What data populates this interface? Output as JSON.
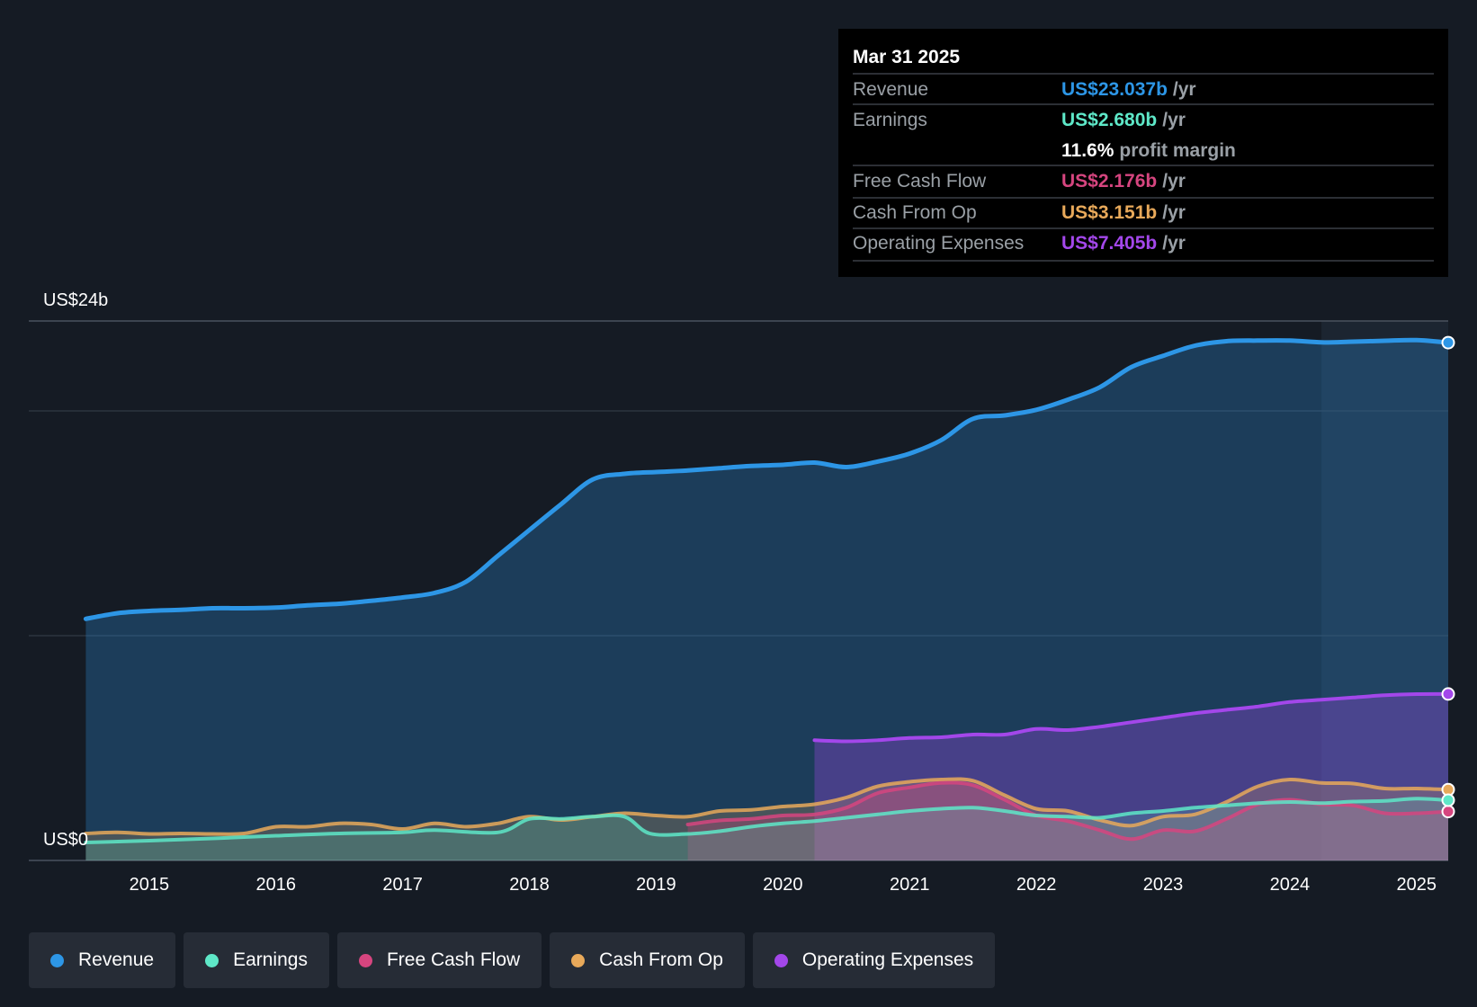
{
  "chart_data": {
    "type": "line",
    "y_axis_top_label": "US$24b",
    "y_axis_bottom_label": "US$0",
    "ylim": [
      0,
      24
    ],
    "x_ticks": [
      "2015",
      "2016",
      "2017",
      "2018",
      "2019",
      "2020",
      "2021",
      "2022",
      "2023",
      "2024",
      "2025"
    ],
    "x_tick_values": [
      2015,
      2016,
      2017,
      2018,
      2019,
      2020,
      2021,
      2022,
      2023,
      2024,
      2025
    ],
    "xlim": [
      2014.05,
      2025.25
    ],
    "highlight_start": 2024.25,
    "series": [
      {
        "name": "Revenue",
        "color": "#2d96e6",
        "fill": true,
        "points": [
          [
            2014.5,
            10.75
          ],
          [
            2014.75,
            11.0
          ],
          [
            2015.0,
            11.1
          ],
          [
            2015.25,
            11.15
          ],
          [
            2015.5,
            11.22
          ],
          [
            2015.75,
            11.22
          ],
          [
            2016.0,
            11.25
          ],
          [
            2016.25,
            11.35
          ],
          [
            2016.5,
            11.42
          ],
          [
            2016.75,
            11.55
          ],
          [
            2017.0,
            11.7
          ],
          [
            2017.25,
            11.9
          ],
          [
            2017.5,
            12.4
          ],
          [
            2017.75,
            13.55
          ],
          [
            2018.0,
            14.7
          ],
          [
            2018.25,
            15.85
          ],
          [
            2018.5,
            16.95
          ],
          [
            2018.75,
            17.2
          ],
          [
            2019.0,
            17.28
          ],
          [
            2019.25,
            17.35
          ],
          [
            2019.5,
            17.45
          ],
          [
            2019.75,
            17.55
          ],
          [
            2020.0,
            17.6
          ],
          [
            2020.25,
            17.7
          ],
          [
            2020.5,
            17.5
          ],
          [
            2020.75,
            17.75
          ],
          [
            2021.0,
            18.1
          ],
          [
            2021.25,
            18.7
          ],
          [
            2021.5,
            19.65
          ],
          [
            2021.75,
            19.8
          ],
          [
            2022.0,
            20.05
          ],
          [
            2022.25,
            20.5
          ],
          [
            2022.5,
            21.05
          ],
          [
            2022.75,
            21.95
          ],
          [
            2023.0,
            22.45
          ],
          [
            2023.25,
            22.9
          ],
          [
            2023.5,
            23.1
          ],
          [
            2023.75,
            23.13
          ],
          [
            2024.0,
            23.13
          ],
          [
            2024.25,
            23.05
          ],
          [
            2024.5,
            23.08
          ],
          [
            2024.75,
            23.12
          ],
          [
            2025.0,
            23.15
          ],
          [
            2025.25,
            23.037
          ]
        ]
      },
      {
        "name": "Earnings",
        "color": "#5ee8c8",
        "fill": true,
        "points": [
          [
            2014.5,
            0.8
          ],
          [
            2015.0,
            0.88
          ],
          [
            2015.5,
            0.98
          ],
          [
            2016.0,
            1.1
          ],
          [
            2016.5,
            1.2
          ],
          [
            2017.0,
            1.25
          ],
          [
            2017.25,
            1.35
          ],
          [
            2017.75,
            1.25
          ],
          [
            2018.0,
            1.85
          ],
          [
            2018.25,
            1.85
          ],
          [
            2018.5,
            1.95
          ],
          [
            2018.75,
            1.95
          ],
          [
            2018.95,
            1.2
          ],
          [
            2019.25,
            1.18
          ],
          [
            2019.5,
            1.3
          ],
          [
            2019.75,
            1.5
          ],
          [
            2020.0,
            1.65
          ],
          [
            2020.25,
            1.75
          ],
          [
            2020.5,
            1.9
          ],
          [
            2020.75,
            2.05
          ],
          [
            2021.0,
            2.2
          ],
          [
            2021.25,
            2.3
          ],
          [
            2021.5,
            2.35
          ],
          [
            2021.75,
            2.2
          ],
          [
            2022.0,
            2.0
          ],
          [
            2022.25,
            1.95
          ],
          [
            2022.5,
            1.9
          ],
          [
            2022.75,
            2.1
          ],
          [
            2023.0,
            2.2
          ],
          [
            2023.25,
            2.35
          ],
          [
            2023.5,
            2.45
          ],
          [
            2023.75,
            2.55
          ],
          [
            2024.0,
            2.6
          ],
          [
            2024.25,
            2.55
          ],
          [
            2024.5,
            2.62
          ],
          [
            2024.75,
            2.65
          ],
          [
            2025.0,
            2.75
          ],
          [
            2025.25,
            2.68
          ]
        ]
      },
      {
        "name": "Free Cash Flow",
        "color": "#d6457f",
        "fill": true,
        "points": [
          [
            2019.25,
            1.6
          ],
          [
            2019.5,
            1.78
          ],
          [
            2019.75,
            1.85
          ],
          [
            2020.0,
            2.0
          ],
          [
            2020.25,
            2.05
          ],
          [
            2020.5,
            2.35
          ],
          [
            2020.75,
            3.0
          ],
          [
            2021.0,
            3.25
          ],
          [
            2021.25,
            3.45
          ],
          [
            2021.5,
            3.35
          ],
          [
            2021.75,
            2.7
          ],
          [
            2022.0,
            2.0
          ],
          [
            2022.25,
            1.75
          ],
          [
            2022.5,
            1.35
          ],
          [
            2022.75,
            0.95
          ],
          [
            2023.0,
            1.35
          ],
          [
            2023.25,
            1.3
          ],
          [
            2023.5,
            1.85
          ],
          [
            2023.75,
            2.5
          ],
          [
            2024.0,
            2.7
          ],
          [
            2024.25,
            2.5
          ],
          [
            2024.5,
            2.45
          ],
          [
            2024.75,
            2.1
          ],
          [
            2025.0,
            2.1
          ],
          [
            2025.25,
            2.176
          ]
        ]
      },
      {
        "name": "Cash From Op",
        "color": "#e8a95a",
        "fill": true,
        "points": [
          [
            2014.5,
            1.2
          ],
          [
            2014.75,
            1.25
          ],
          [
            2015.0,
            1.18
          ],
          [
            2015.25,
            1.2
          ],
          [
            2015.5,
            1.18
          ],
          [
            2015.75,
            1.2
          ],
          [
            2016.0,
            1.5
          ],
          [
            2016.25,
            1.5
          ],
          [
            2016.5,
            1.65
          ],
          [
            2016.75,
            1.6
          ],
          [
            2017.0,
            1.4
          ],
          [
            2017.25,
            1.65
          ],
          [
            2017.5,
            1.5
          ],
          [
            2017.75,
            1.65
          ],
          [
            2018.0,
            1.95
          ],
          [
            2018.25,
            1.8
          ],
          [
            2018.5,
            1.95
          ],
          [
            2018.75,
            2.1
          ],
          [
            2019.0,
            2.0
          ],
          [
            2019.25,
            1.95
          ],
          [
            2019.5,
            2.2
          ],
          [
            2019.75,
            2.25
          ],
          [
            2020.0,
            2.4
          ],
          [
            2020.25,
            2.5
          ],
          [
            2020.5,
            2.8
          ],
          [
            2020.75,
            3.3
          ],
          [
            2021.0,
            3.5
          ],
          [
            2021.25,
            3.6
          ],
          [
            2021.5,
            3.55
          ],
          [
            2021.75,
            2.9
          ],
          [
            2022.0,
            2.3
          ],
          [
            2022.25,
            2.2
          ],
          [
            2022.5,
            1.8
          ],
          [
            2022.75,
            1.55
          ],
          [
            2023.0,
            1.95
          ],
          [
            2023.25,
            2.05
          ],
          [
            2023.5,
            2.6
          ],
          [
            2023.75,
            3.3
          ],
          [
            2024.0,
            3.6
          ],
          [
            2024.25,
            3.45
          ],
          [
            2024.5,
            3.42
          ],
          [
            2024.75,
            3.2
          ],
          [
            2025.0,
            3.2
          ],
          [
            2025.25,
            3.151
          ]
        ]
      },
      {
        "name": "Operating Expenses",
        "color": "#a347ea",
        "fill": true,
        "points": [
          [
            2020.25,
            5.35
          ],
          [
            2020.5,
            5.3
          ],
          [
            2020.75,
            5.35
          ],
          [
            2021.0,
            5.45
          ],
          [
            2021.25,
            5.48
          ],
          [
            2021.5,
            5.6
          ],
          [
            2021.75,
            5.6
          ],
          [
            2022.0,
            5.85
          ],
          [
            2022.25,
            5.8
          ],
          [
            2022.5,
            5.95
          ],
          [
            2022.75,
            6.15
          ],
          [
            2023.0,
            6.35
          ],
          [
            2023.25,
            6.55
          ],
          [
            2023.5,
            6.7
          ],
          [
            2023.75,
            6.85
          ],
          [
            2024.0,
            7.05
          ],
          [
            2024.25,
            7.15
          ],
          [
            2024.5,
            7.25
          ],
          [
            2024.75,
            7.35
          ],
          [
            2025.0,
            7.4
          ],
          [
            2025.25,
            7.405
          ]
        ]
      }
    ]
  },
  "tooltip": {
    "date": "Mar 31 2025",
    "rows": [
      {
        "label": "Revenue",
        "value": "US$23.037b",
        "unit": "/yr",
        "color": "#2d96e6"
      },
      {
        "label": "Earnings",
        "value": "US$2.680b",
        "unit": "/yr",
        "color": "#5ee8c8"
      },
      {
        "label": "",
        "value": "11.6%",
        "unit": "profit margin",
        "color": "#ffffff"
      },
      {
        "label": "Free Cash Flow",
        "value": "US$2.176b",
        "unit": "/yr",
        "color": "#d6457f"
      },
      {
        "label": "Cash From Op",
        "value": "US$3.151b",
        "unit": "/yr",
        "color": "#e8a95a"
      },
      {
        "label": "Operating Expenses",
        "value": "US$7.405b",
        "unit": "/yr",
        "color": "#a347ea"
      }
    ]
  },
  "legend": [
    {
      "label": "Revenue",
      "color": "#2d96e6"
    },
    {
      "label": "Earnings",
      "color": "#5ee8c8"
    },
    {
      "label": "Free Cash Flow",
      "color": "#d6457f"
    },
    {
      "label": "Cash From Op",
      "color": "#e8a95a"
    },
    {
      "label": "Operating Expenses",
      "color": "#a347ea"
    }
  ]
}
